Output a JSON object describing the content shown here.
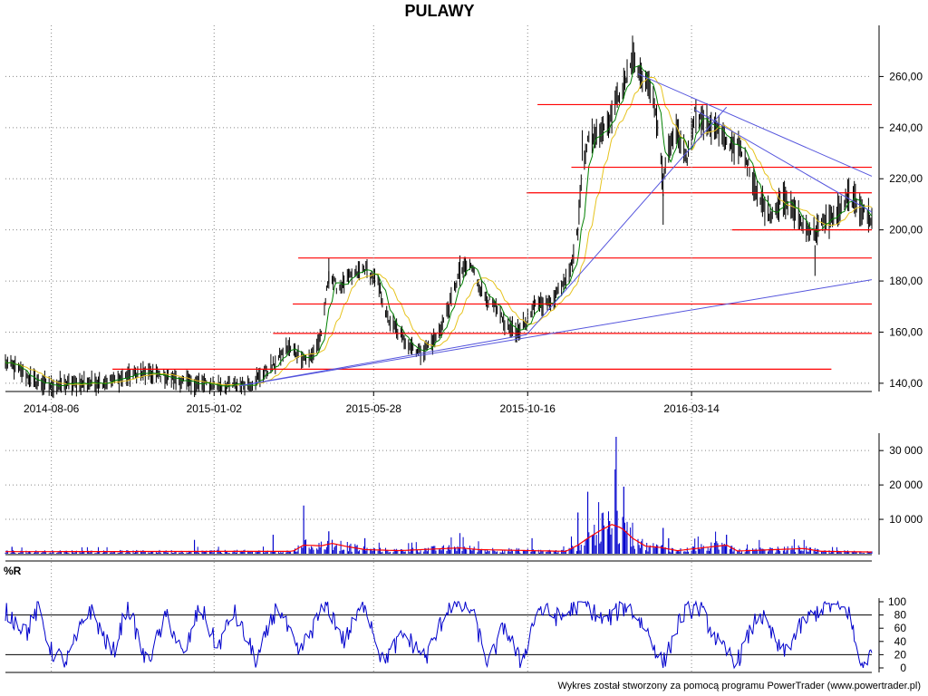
{
  "title": "PULAWY",
  "footer": "Wykres został stworzony za pomocą programu PowerTrader (www.powertrader.pl)",
  "colors": {
    "price": "#000000",
    "ma_long": "#e6c31e",
    "ma_short": "#008000",
    "support_resistance": "#ff0000",
    "trendline": "#5555dd",
    "volume": "#0000cc",
    "volume_ma": "#ff0000",
    "williams_r": "#0000cc",
    "grid": "#888888"
  },
  "chart_data": [
    {
      "type": "line",
      "name": "price-panel",
      "title": "PULAWY",
      "x_ticks": [
        "2014-08-06",
        "2015-01-02",
        "2015-05-28",
        "2015-10-16",
        "2016-03-14"
      ],
      "x_range": [
        "2014-06-25",
        "2016-08-26"
      ],
      "y_ticks": [
        "140,00",
        "160,00",
        "180,00",
        "200,00",
        "220,00",
        "240,00",
        "260,00"
      ],
      "y_range": [
        135,
        280
      ],
      "grid": true,
      "price_keypoints": [
        [
          "2014-06-25",
          148
        ],
        [
          "2014-07-05",
          146
        ],
        [
          "2014-07-20",
          141
        ],
        [
          "2014-08-06",
          139
        ],
        [
          "2014-09-01",
          140
        ],
        [
          "2014-10-01",
          141
        ],
        [
          "2014-10-25",
          144
        ],
        [
          "2014-11-15",
          143
        ],
        [
          "2014-12-10",
          140
        ],
        [
          "2015-01-15",
          139
        ],
        [
          "2015-02-05",
          140
        ],
        [
          "2015-02-25",
          147
        ],
        [
          "2015-03-10",
          154
        ],
        [
          "2015-03-30",
          149
        ],
        [
          "2015-04-10",
          158
        ],
        [
          "2015-04-17",
          183
        ],
        [
          "2015-04-25",
          177
        ],
        [
          "2015-05-05",
          181
        ],
        [
          "2015-05-20",
          185
        ],
        [
          "2015-06-01",
          179
        ],
        [
          "2015-06-10",
          165
        ],
        [
          "2015-06-25",
          157
        ],
        [
          "2015-07-10",
          152
        ],
        [
          "2015-07-25",
          158
        ],
        [
          "2015-08-05",
          170
        ],
        [
          "2015-08-15",
          184
        ],
        [
          "2015-08-25",
          186
        ],
        [
          "2015-09-05",
          175
        ],
        [
          "2015-09-15",
          170
        ],
        [
          "2015-09-25",
          163
        ],
        [
          "2015-10-05",
          160
        ],
        [
          "2015-10-15",
          164
        ],
        [
          "2015-10-25",
          172
        ],
        [
          "2015-11-05",
          171
        ],
        [
          "2015-11-15",
          178
        ],
        [
          "2015-11-25",
          186
        ],
        [
          "2015-12-01",
          200
        ],
        [
          "2015-12-05",
          225
        ],
        [
          "2015-12-10",
          235
        ],
        [
          "2015-12-20",
          238
        ],
        [
          "2015-12-30",
          243
        ],
        [
          "2016-01-05",
          251
        ],
        [
          "2016-01-12",
          256
        ],
        [
          "2016-01-20",
          268
        ],
        [
          "2016-01-25",
          262
        ],
        [
          "2016-02-01",
          258
        ],
        [
          "2016-02-08",
          252
        ],
        [
          "2016-02-12",
          240
        ],
        [
          "2016-02-17",
          218
        ],
        [
          "2016-02-22",
          232
        ],
        [
          "2016-02-29",
          238
        ],
        [
          "2016-03-05",
          233
        ],
        [
          "2016-03-10",
          228
        ],
        [
          "2016-03-17",
          246
        ],
        [
          "2016-03-25",
          242
        ],
        [
          "2016-04-05",
          240
        ],
        [
          "2016-04-15",
          234
        ],
        [
          "2016-04-25",
          233
        ],
        [
          "2016-05-05",
          225
        ],
        [
          "2016-05-15",
          212
        ],
        [
          "2016-05-25",
          206
        ],
        [
          "2016-06-05",
          212
        ],
        [
          "2016-06-15",
          208
        ],
        [
          "2016-06-25",
          201
        ],
        [
          "2016-07-05",
          199
        ],
        [
          "2016-07-15",
          204
        ],
        [
          "2016-07-25",
          206
        ],
        [
          "2016-08-05",
          213
        ],
        [
          "2016-08-15",
          209
        ],
        [
          "2016-08-25",
          204
        ]
      ],
      "horizontal_lines": [
        {
          "y": 249,
          "from": "2015-10-25",
          "to": "2016-08-26"
        },
        {
          "y": 224.5,
          "from": "2015-11-25",
          "to": "2016-08-26"
        },
        {
          "y": 214.5,
          "from": "2015-10-15",
          "to": "2016-08-26"
        },
        {
          "y": 200,
          "from": "2016-04-20",
          "to": "2016-08-26"
        },
        {
          "y": 189,
          "from": "2015-03-20",
          "to": "2016-08-26"
        },
        {
          "y": 171,
          "from": "2015-03-15",
          "to": "2016-08-26"
        },
        {
          "y": 159.5,
          "from": "2015-02-25",
          "to": "2016-08-26"
        },
        {
          "y": 145.5,
          "from": "2014-10-01",
          "to": "2016-07-20"
        }
      ],
      "trendlines": [
        {
          "from": [
            "2015-01-25",
            139
          ],
          "to": [
            "2016-08-26",
            180.5
          ]
        },
        {
          "from": [
            "2015-01-25",
            139
          ],
          "to": [
            "2015-10-15",
            159
          ]
        },
        {
          "from": [
            "2015-10-15",
            159
          ],
          "to": [
            "2016-04-15",
            248
          ]
        },
        {
          "from": [
            "2016-01-25",
            261
          ],
          "to": [
            "2016-08-26",
            221
          ]
        },
        {
          "from": [
            "2016-03-17",
            247
          ],
          "to": [
            "2016-08-26",
            207
          ]
        }
      ]
    },
    {
      "type": "bar",
      "name": "volume-panel",
      "y_ticks": [
        "10 000",
        "20 000",
        "30 000"
      ],
      "y_range": [
        0,
        34000
      ],
      "spikes": [
        [
          "2014-07-01",
          2000
        ],
        [
          "2014-12-15",
          4000
        ],
        [
          "2015-02-25",
          5500
        ],
        [
          "2015-03-25",
          14000
        ],
        [
          "2015-04-17",
          6500
        ],
        [
          "2015-05-20",
          4500
        ],
        [
          "2015-08-15",
          6000
        ],
        [
          "2015-10-20",
          4500
        ],
        [
          "2015-11-25",
          5000
        ],
        [
          "2015-12-01",
          12000
        ],
        [
          "2015-12-10",
          18000
        ],
        [
          "2015-12-20",
          15000
        ],
        [
          "2015-12-30",
          9500
        ],
        [
          "2016-01-05",
          34000
        ],
        [
          "2016-01-12",
          19500
        ],
        [
          "2016-01-20",
          9000
        ],
        [
          "2016-02-17",
          7500
        ],
        [
          "2016-02-22",
          4500
        ],
        [
          "2016-03-20",
          5000
        ],
        [
          "2016-04-15",
          5500
        ],
        [
          "2016-05-15",
          4000
        ],
        [
          "2016-06-25",
          4000
        ]
      ],
      "volume_ma_keypoints": [
        [
          "2014-06-25",
          600
        ],
        [
          "2015-03-15",
          700
        ],
        [
          "2015-03-25",
          2500
        ],
        [
          "2015-04-10",
          2300
        ],
        [
          "2015-04-20",
          3000
        ],
        [
          "2015-05-05",
          2000
        ],
        [
          "2015-05-20",
          1200
        ],
        [
          "2015-06-20",
          900
        ],
        [
          "2015-08-15",
          1700
        ],
        [
          "2015-09-01",
          1200
        ],
        [
          "2015-11-20",
          700
        ],
        [
          "2015-12-01",
          2500
        ],
        [
          "2015-12-10",
          4500
        ],
        [
          "2015-12-20",
          6500
        ],
        [
          "2016-01-01",
          8500
        ],
        [
          "2016-01-10",
          7500
        ],
        [
          "2016-01-20",
          4500
        ],
        [
          "2016-02-01",
          2200
        ],
        [
          "2016-02-15",
          1800
        ],
        [
          "2016-03-01",
          900
        ],
        [
          "2016-04-15",
          2500
        ],
        [
          "2016-04-25",
          800
        ],
        [
          "2016-06-25",
          1500
        ],
        [
          "2016-07-10",
          700
        ],
        [
          "2016-08-26",
          500
        ]
      ]
    },
    {
      "type": "line",
      "name": "williams-r-panel",
      "title": "%R",
      "y_ticks": [
        "0",
        "20",
        "40",
        "60",
        "80",
        "100"
      ],
      "y_range": [
        0,
        100
      ],
      "reference_lines": [
        20,
        80
      ],
      "keypoints": [
        [
          "2014-06-25",
          85
        ],
        [
          "2014-07-15",
          55
        ],
        [
          "2014-07-25",
          90
        ],
        [
          "2014-08-06",
          25
        ],
        [
          "2014-08-20",
          10
        ],
        [
          "2014-09-10",
          90
        ],
        [
          "2014-10-01",
          20
        ],
        [
          "2014-10-15",
          95
        ],
        [
          "2014-11-01",
          5
        ],
        [
          "2014-11-20",
          80
        ],
        [
          "2014-12-05",
          15
        ],
        [
          "2014-12-20",
          95
        ],
        [
          "2015-01-05",
          30
        ],
        [
          "2015-01-20",
          85
        ],
        [
          "2015-02-10",
          10
        ],
        [
          "2015-03-01",
          95
        ],
        [
          "2015-03-20",
          20
        ],
        [
          "2015-04-15",
          98
        ],
        [
          "2015-05-01",
          40
        ],
        [
          "2015-05-20",
          100
        ],
        [
          "2015-06-05",
          10
        ],
        [
          "2015-06-25",
          50
        ],
        [
          "2015-07-15",
          15
        ],
        [
          "2015-08-05",
          95
        ],
        [
          "2015-08-25",
          90
        ],
        [
          "2015-09-10",
          5
        ],
        [
          "2015-09-25",
          65
        ],
        [
          "2015-10-10",
          5
        ],
        [
          "2015-10-25",
          90
        ],
        [
          "2015-11-15",
          75
        ],
        [
          "2015-12-05",
          100
        ],
        [
          "2015-12-25",
          70
        ],
        [
          "2016-01-15",
          95
        ],
        [
          "2016-02-01",
          60
        ],
        [
          "2016-02-17",
          5
        ],
        [
          "2016-03-05",
          80
        ],
        [
          "2016-03-20",
          95
        ],
        [
          "2016-04-10",
          30
        ],
        [
          "2016-04-25",
          10
        ],
        [
          "2016-05-15",
          85
        ],
        [
          "2016-06-05",
          20
        ],
        [
          "2016-06-25",
          70
        ],
        [
          "2016-07-15",
          95
        ],
        [
          "2016-08-05",
          85
        ],
        [
          "2016-08-15",
          5
        ],
        [
          "2016-08-26",
          20
        ]
      ]
    }
  ]
}
